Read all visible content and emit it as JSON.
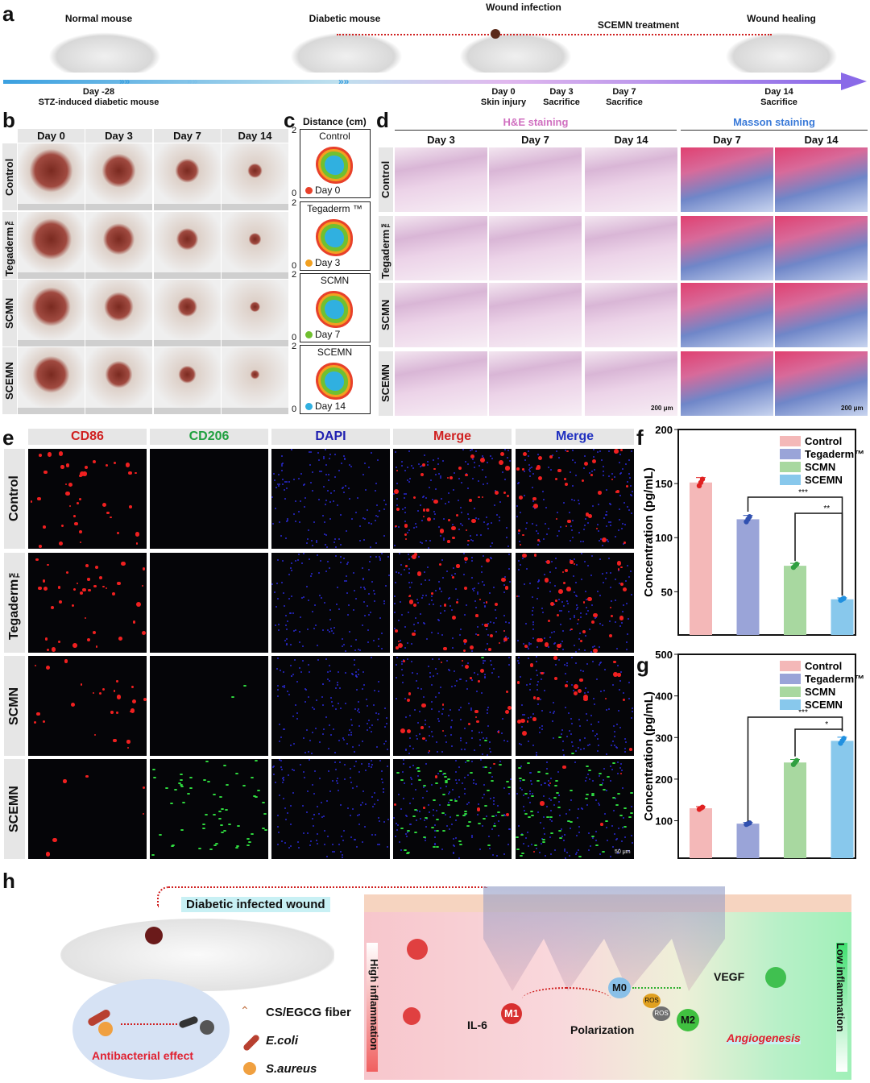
{
  "panel_labels": {
    "a": "a",
    "b": "b",
    "c": "c",
    "d": "d",
    "e": "e",
    "f": "f",
    "g": "g",
    "h": "h"
  },
  "timeline": {
    "stages": [
      "Normal mouse",
      "Diabetic mouse",
      "Wound infection",
      "SCEMN treatment",
      "Wound healing"
    ],
    "events": [
      {
        "day": "Day -28",
        "desc": "STZ-induced diabetic mouse"
      },
      {
        "day": "Day 0",
        "desc": "Skin injury"
      },
      {
        "day": "Day 3",
        "desc": "Sacrifice"
      },
      {
        "day": "Day 7",
        "desc": "Sacrifice"
      },
      {
        "day": "Day 14",
        "desc": "Sacrifice"
      }
    ],
    "colors": {
      "start": "#3aa0e0",
      "end": "#8a6ae8",
      "marker": "#f39a1e"
    }
  },
  "groups": [
    "Control",
    "Tegaderm™",
    "SCMN",
    "SCEMN"
  ],
  "panel_b": {
    "days": [
      "Day 0",
      "Day 3",
      "Day 7",
      "Day 14"
    ]
  },
  "panel_c": {
    "title": "Distance (cm)",
    "axis_max": "2",
    "axis_min": "0",
    "boxes": [
      "Control",
      "Tegaderm ™",
      "SCMN",
      "SCEMN"
    ],
    "legend": [
      {
        "label": "Day 0",
        "color": "#e8402a"
      },
      {
        "label": "Day 3",
        "color": "#f2a020"
      },
      {
        "label": "Day 7",
        "color": "#70c030"
      },
      {
        "label": "Day 14",
        "color": "#30b0e0"
      }
    ]
  },
  "panel_d": {
    "he_title": "H&E staining",
    "masson_title": "Masson staining",
    "he_color": "#d070c0",
    "masson_color": "#3a7ad8",
    "he_days": [
      "Day 3",
      "Day 7",
      "Day 14"
    ],
    "masson_days": [
      "Day 7",
      "Day 14"
    ],
    "scale_bar": "200 μm"
  },
  "panel_e": {
    "channels": [
      {
        "label": "CD86",
        "color": "#d02020"
      },
      {
        "label": "CD206",
        "color": "#20a040"
      },
      {
        "label": "DAPI",
        "color": "#2020b0"
      },
      {
        "label": "Merge",
        "color": "#d02020"
      },
      {
        "label": "Merge",
        "color": "#2030c0"
      }
    ],
    "scale_bar": "50 μm"
  },
  "chart_data": [
    {
      "type": "bar",
      "panel": "f",
      "categories": [
        "Control",
        "Tegaderm™",
        "SCMN",
        "SCEMN"
      ],
      "values": [
        151,
        117,
        74,
        43
      ],
      "ylabel": "Concentration (pg/mL)",
      "ylim": [
        10,
        200
      ],
      "yticks": [
        50,
        100,
        150,
        200
      ],
      "colors": [
        "#f4b8b8",
        "#9aa4d8",
        "#a8d8a0",
        "#88c8ec"
      ],
      "dot_colors": [
        "#e02020",
        "#3050b0",
        "#30a040",
        "#2090e0"
      ],
      "legend": "top-right",
      "significance": [
        {
          "from": "Tegaderm™",
          "to": "SCEMN",
          "label": "***"
        },
        {
          "from": "SCMN",
          "to": "SCEMN",
          "label": "**"
        }
      ]
    },
    {
      "type": "bar",
      "panel": "g",
      "categories": [
        "Control",
        "Tegaderm™",
        "SCMN",
        "SCEMN"
      ],
      "values": [
        130,
        93,
        240,
        292
      ],
      "ylabel": "Concentration (pg/mL)",
      "ylim": [
        10,
        500
      ],
      "yticks": [
        100,
        200,
        300,
        400,
        500
      ],
      "colors": [
        "#f4b8b8",
        "#9aa4d8",
        "#a8d8a0",
        "#88c8ec"
      ],
      "dot_colors": [
        "#e02020",
        "#3050b0",
        "#30a040",
        "#2090e0"
      ],
      "legend": "top-right",
      "significance": [
        {
          "from": "Tegaderm™",
          "to": "SCEMN",
          "label": "***"
        },
        {
          "from": "SCMN",
          "to": "SCEMN",
          "label": "*"
        }
      ]
    }
  ],
  "panel_h": {
    "wound": "Diabetic infected wound",
    "fiber": "CS/EGCG fiber",
    "ecoli": "E.coli",
    "saureus": "S.aureus",
    "antibacterial": "Antibacterial effect",
    "high": "High inflammation",
    "low": "Low inflammation",
    "m0": "M0",
    "m1": "M1",
    "m2": "M2",
    "il6": "IL-6",
    "vegf": "VEGF",
    "ros": "ROS",
    "polarization": "Polarization",
    "angiogenesis": "Angiogenesis"
  }
}
